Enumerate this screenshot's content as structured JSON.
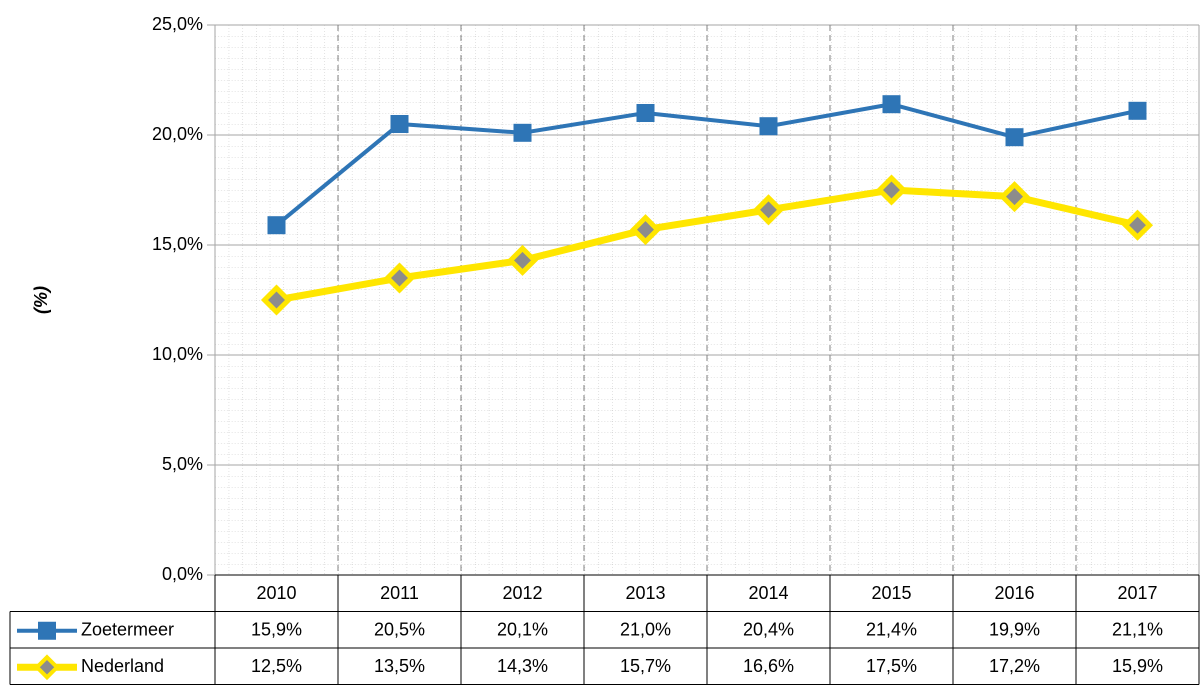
{
  "chart_data": {
    "type": "line",
    "y_label": "(%)",
    "categories": [
      "2010",
      "2011",
      "2012",
      "2013",
      "2014",
      "2015",
      "2016",
      "2017"
    ],
    "series": [
      {
        "name": "Zoetermeer",
        "color": "#2e75b6",
        "marker": "square",
        "values": [
          15.9,
          20.5,
          20.1,
          21.0,
          20.4,
          21.4,
          19.9,
          21.1
        ],
        "value_labels": [
          "15,9%",
          "20,5%",
          "20,1%",
          "21,0%",
          "20,4%",
          "21,4%",
          "19,9%",
          "21,1%"
        ]
      },
      {
        "name": "Nederland",
        "color": "#ffe600",
        "marker": "diamond",
        "values": [
          12.5,
          13.5,
          14.3,
          15.7,
          16.6,
          17.5,
          17.2,
          15.9
        ],
        "value_labels": [
          "12,5%",
          "13,5%",
          "14,3%",
          "15,7%",
          "16,6%",
          "17,5%",
          "17,2%",
          "15,9%"
        ]
      }
    ],
    "ylim": [
      0,
      25
    ],
    "yticks": [
      {
        "value": 0,
        "label": "0,0%"
      },
      {
        "value": 5,
        "label": "5,0%"
      },
      {
        "value": 10,
        "label": "10,0%"
      },
      {
        "value": 15,
        "label": "15,0%"
      },
      {
        "value": 20,
        "label": "20,0%"
      },
      {
        "value": 25,
        "label": "25,0%"
      }
    ],
    "grid": true
  }
}
